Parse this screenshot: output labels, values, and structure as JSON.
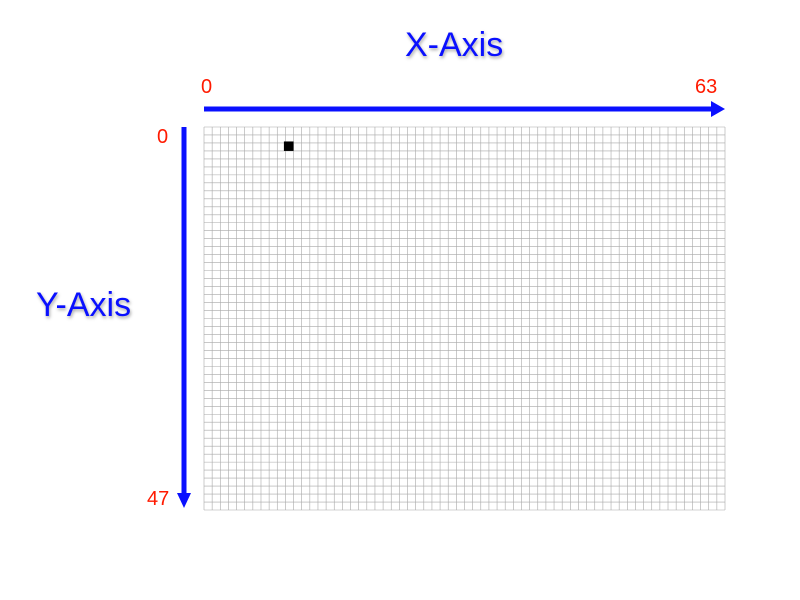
{
  "title": "",
  "x_axis": {
    "label": "X-Axis",
    "start_label": "0",
    "end_label": "63"
  },
  "y_axis": {
    "label": "Y-Axis",
    "start_label": "0",
    "end_label": "47"
  },
  "grid": {
    "columns": 64,
    "rows": 48
  },
  "highlighted_pixels": [
    {
      "x": 10,
      "y": 2
    }
  ],
  "colors": {
    "axis": "#0a10ff",
    "axis_title": "#0a10ff",
    "tick_label": "#ff1a00",
    "grid_line": "#a8a8a8",
    "pixel": "#000000"
  }
}
